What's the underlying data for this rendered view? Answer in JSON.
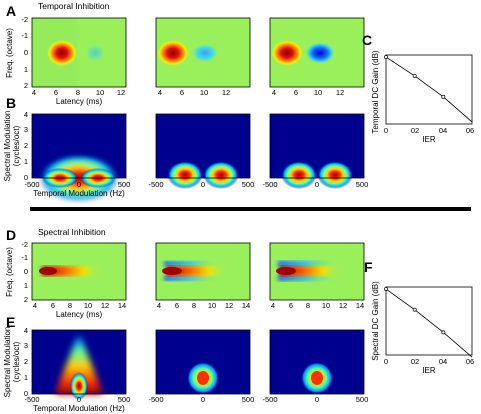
{
  "panel_labels": {
    "A": "A",
    "B": "B",
    "C": "C",
    "D": "D",
    "E": "E",
    "F": "F"
  },
  "section_titles": {
    "top": "Temporal Inhibition",
    "bottom": "Spectral Inhibition"
  },
  "strf_axes": {
    "ylabel": "Freq. (octave)",
    "xlabel": "Latency (ms)",
    "xticks_top": [
      "4",
      "6",
      "8",
      "10",
      "12"
    ],
    "xticks_bottom": [
      "4",
      "6",
      "8",
      "10",
      "12",
      "14"
    ],
    "yticks": [
      "-2",
      "-1",
      "0",
      "1",
      "2"
    ]
  },
  "mtf_axes": {
    "ylabel1": "Spectral Modulation",
    "ylabel2": "(cycles/oct)",
    "xlabel": "Temporal Modulation (Hz)",
    "xticks": [
      "-500",
      "0",
      "500"
    ],
    "yticks": [
      "0",
      "1",
      "2",
      "3",
      "4"
    ]
  },
  "gain_axes": {
    "xticks": [
      "0",
      "02",
      "04",
      "06"
    ],
    "xlabel": "IER"
  },
  "chart_data": [
    {
      "type": "line",
      "panel": "C",
      "ylabel": "Temporal DC Gain (dB)",
      "xlabel": "IER",
      "x": [
        0,
        0.2,
        0.4,
        0.6
      ],
      "y": [
        0,
        -0.45,
        -0.95,
        -1.55
      ],
      "markers": [
        {
          "x": 0,
          "y": 0
        },
        {
          "x": 0.2,
          "y": -0.45
        },
        {
          "x": 0.4,
          "y": -0.95
        }
      ]
    },
    {
      "type": "line",
      "panel": "F",
      "ylabel": "Spectral DC Gain (dB)",
      "xlabel": "IER",
      "x": [
        0,
        0.2,
        0.4,
        0.6
      ],
      "y": [
        0,
        -0.5,
        -1.05,
        -1.65
      ],
      "markers": [
        {
          "x": 0,
          "y": 0
        },
        {
          "x": 0.2,
          "y": -0.5
        },
        {
          "x": 0.4,
          "y": -1.05
        }
      ]
    }
  ]
}
